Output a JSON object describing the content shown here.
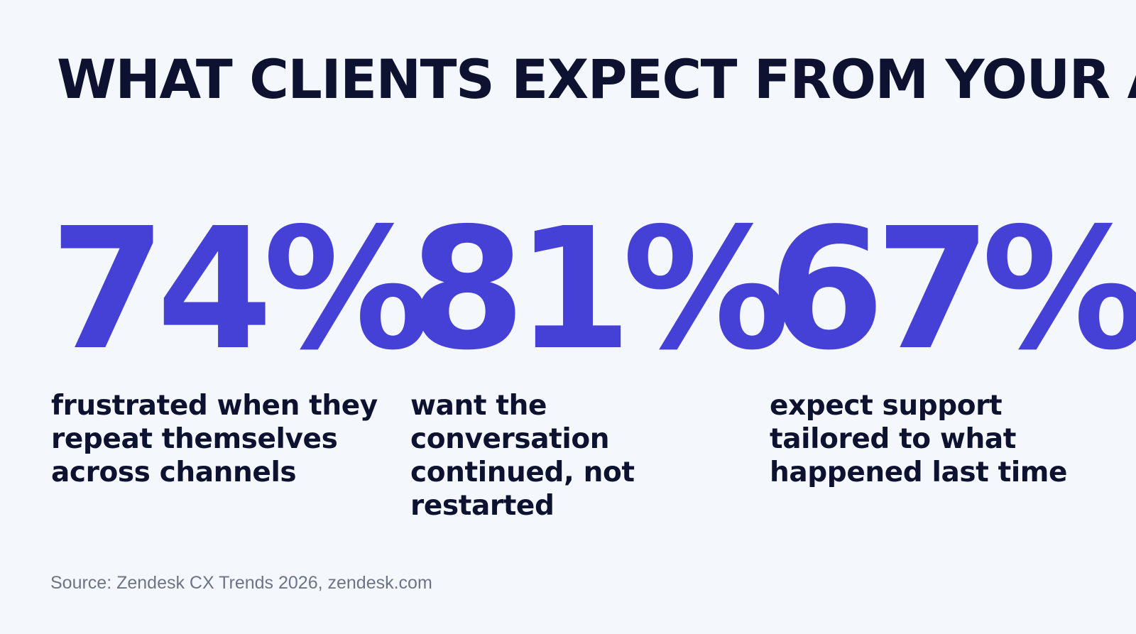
{
  "colors": {
    "background": "#f4f7fb",
    "headline": "#0d1230",
    "accent": "#4540d6",
    "body_text": "#0d1230",
    "source_text": "#6d7485"
  },
  "headline": "WHAT CLIENTS EXPECT FROM YOUR AI",
  "stats": [
    {
      "value": "74%",
      "description": "frustrated when they repeat themselves across channels"
    },
    {
      "value": "81%",
      "description": "want the conversation continued, not restarted"
    },
    {
      "value": "67%",
      "description": "expect support tailored to what happened last time"
    }
  ],
  "source": "Source: Zendesk CX Trends 2026, zendesk.com"
}
